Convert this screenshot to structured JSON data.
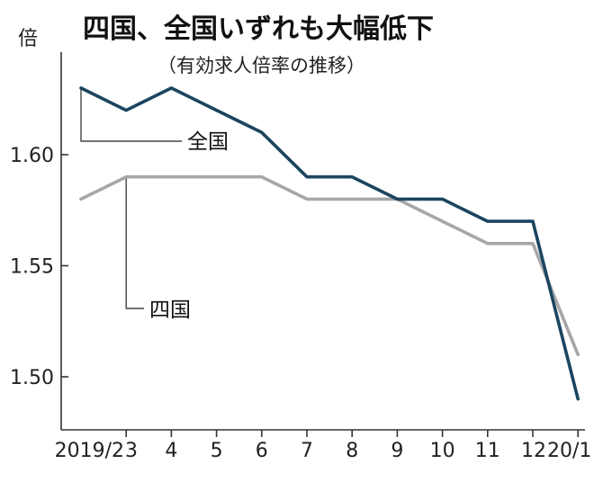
{
  "chart_data": {
    "type": "line",
    "title": "四国、全国いずれも大幅低下",
    "subtitle": "（有効求人倍率の推移）",
    "ylabel": "倍",
    "xlabel": "",
    "x": [
      "2019/2",
      "3",
      "4",
      "5",
      "6",
      "7",
      "8",
      "9",
      "10",
      "11",
      "12",
      "20/1"
    ],
    "xtick_labels": [
      "2019/2",
      "3",
      "4",
      "5",
      "6",
      "7",
      "8",
      "9",
      "10",
      "11",
      "12",
      "20/1"
    ],
    "yticks": [
      1.5,
      1.55,
      1.6
    ],
    "ytick_labels": [
      "1.50",
      "1.55",
      "1.60"
    ],
    "ylim": [
      1.47,
      1.64
    ],
    "grid": false,
    "series": [
      {
        "name": "全国",
        "color": "#1b4560",
        "values": [
          1.63,
          1.62,
          1.63,
          1.62,
          1.61,
          1.59,
          1.59,
          1.58,
          1.58,
          1.57,
          1.57,
          1.49
        ]
      },
      {
        "name": "四国",
        "color": "#a7a7ab",
        "values": [
          1.58,
          1.59,
          1.59,
          1.59,
          1.59,
          1.58,
          1.58,
          1.58,
          1.57,
          1.56,
          1.56,
          1.51
        ]
      }
    ]
  }
}
